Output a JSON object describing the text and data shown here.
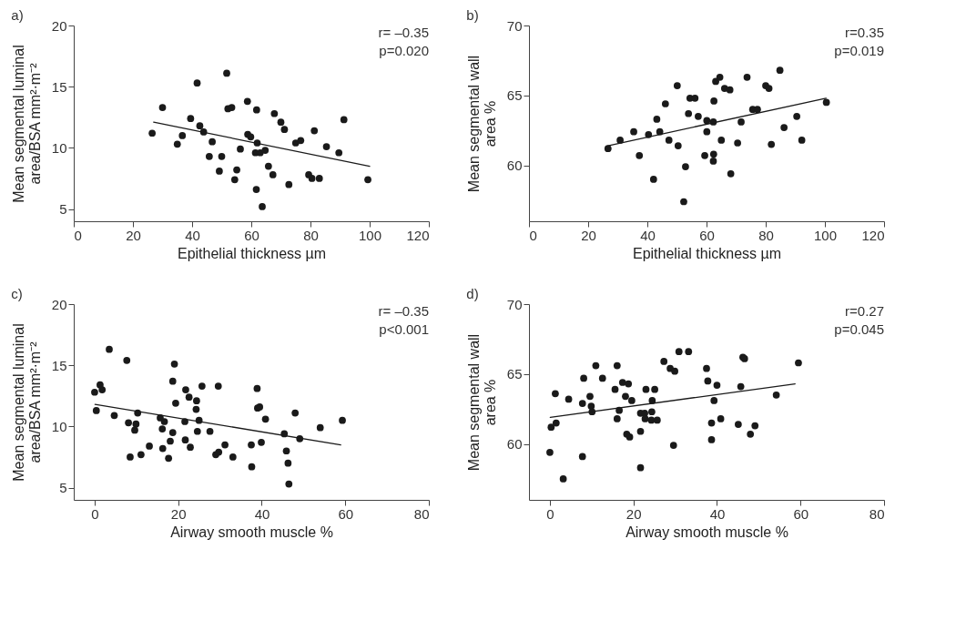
{
  "chart_data": [
    {
      "type": "scatter",
      "title": "a)",
      "xlabel": "Epithelial thickness µm",
      "ylabel": "Mean segmental luminal\narea/BSA mm²·m⁻²",
      "xlim": [
        0,
        120
      ],
      "xticks": [
        0,
        20,
        40,
        60,
        80,
        100,
        120
      ],
      "ylim": [
        4,
        20
      ],
      "yticks": [
        5,
        10,
        15,
        20
      ],
      "grid": false,
      "annotations": [
        "r= –0.35",
        "p=0.020"
      ],
      "series": [
        {
          "marker": "circle",
          "color": "#1a1a1a",
          "x": [
            26.5,
            30.0,
            35.0,
            36.7,
            39.5,
            41.7,
            42.6,
            43.9,
            46.8,
            45.8,
            50.0,
            49.2,
            51.7,
            52.1,
            53.4,
            55.1,
            54.4,
            56.3,
            58.7,
            58.8,
            59.8,
            61.8,
            62.0,
            61.4,
            63.0,
            64.7,
            61.7,
            63.7,
            65.8,
            67.3,
            67.8,
            70.0,
            71.2,
            72.7,
            75.0,
            76.7,
            79.4,
            80.5,
            81.3,
            83.0,
            85.4,
            89.6,
            91.3,
            99.4
          ],
          "values": [
            11.2,
            13.3,
            10.3,
            11.0,
            12.4,
            15.3,
            11.8,
            11.3,
            10.5,
            9.3,
            9.3,
            8.1,
            16.1,
            13.2,
            13.3,
            8.2,
            7.4,
            9.9,
            13.8,
            11.1,
            10.9,
            13.1,
            10.4,
            9.6,
            9.6,
            9.8,
            6.6,
            5.2,
            8.5,
            7.8,
            12.8,
            12.1,
            11.5,
            7.0,
            10.4,
            10.6,
            7.8,
            7.5,
            11.4,
            7.5,
            10.1,
            9.6,
            12.3,
            7.4
          ]
        },
        {
          "type": "line",
          "color": "#1a1a1a",
          "line_style": "solid",
          "x": [
            27,
            100
          ],
          "values": [
            12.1,
            8.5
          ]
        }
      ]
    },
    {
      "type": "scatter",
      "title": "b)",
      "xlabel": "Epithelial thickness µm",
      "ylabel": "Mean segmental wall\narea %",
      "xlim": [
        0,
        120
      ],
      "xticks": [
        0,
        20,
        40,
        60,
        80,
        100,
        120
      ],
      "ylim": [
        56,
        70
      ],
      "yticks": [
        60,
        65,
        70
      ],
      "grid": false,
      "annotations": [
        "r=0.35",
        "p=0.019"
      ],
      "series": [
        {
          "marker": "circle",
          "color": "#1a1a1a",
          "x": [
            26.7,
            30.8,
            35.4,
            37.3,
            40.4,
            42.1,
            43.2,
            44.2,
            46.1,
            47.3,
            50.1,
            50.4,
            52.3,
            52.9,
            53.9,
            54.4,
            56.1,
            57.2,
            60.1,
            60.1,
            59.4,
            62.3,
            62.4,
            62.3,
            62.5,
            63.1,
            64.5,
            65.0,
            66.1,
            67.9,
            68.2,
            70.5,
            71.7,
            73.7,
            75.6,
            77.2,
            80.0,
            81.1,
            81.9,
            84.8,
            86.2,
            90.5,
            92.2,
            100.5
          ],
          "values": [
            61.2,
            61.8,
            62.4,
            60.7,
            62.2,
            59.0,
            63.3,
            62.4,
            64.4,
            61.8,
            65.7,
            61.4,
            57.4,
            59.9,
            63.7,
            64.8,
            64.8,
            63.5,
            63.2,
            62.4,
            60.7,
            63.1,
            60.8,
            60.3,
            64.6,
            66.0,
            66.3,
            61.8,
            65.5,
            65.4,
            59.4,
            61.6,
            63.1,
            66.3,
            64.0,
            64.0,
            65.7,
            65.5,
            61.5,
            66.8,
            62.7,
            63.5,
            61.8,
            64.5
          ]
        },
        {
          "type": "line",
          "color": "#1a1a1a",
          "line_style": "solid",
          "x": [
            26.7,
            100.4
          ],
          "values": [
            61.4,
            64.8
          ]
        }
      ]
    },
    {
      "type": "scatter",
      "title": "c)",
      "xlabel": "Airway smooth muscle %",
      "ylabel": "Mean segmental luminal\narea/BSA mm²·m⁻²",
      "xlim": [
        -5,
        80
      ],
      "xticks": [
        0,
        20,
        40,
        60,
        80
      ],
      "ylim": [
        4,
        20
      ],
      "yticks": [
        5,
        10,
        15,
        20
      ],
      "grid": false,
      "annotations": [
        "r= –0.35",
        "p<0.001"
      ],
      "series": [
        {
          "marker": "circle",
          "color": "#1a1a1a",
          "x": [
            0.0,
            0.4,
            1.3,
            1.8,
            3.5,
            4.7,
            7.7,
            8.1,
            8.5,
            9.9,
            9.6,
            10.3,
            11.1,
            13.1,
            15.7,
            16.7,
            16.2,
            16.3,
            17.7,
            18.1,
            18.7,
            18.7,
            19.1,
            19.4,
            21.6,
            21.7,
            21.8,
            22.6,
            22.9,
            24.4,
            24.3,
            25.0,
            24.6,
            25.7,
            27.6,
            29.0,
            29.7,
            29.6,
            31.2,
            33.1,
            37.5,
            37.6,
            38.9,
            39.0,
            39.5,
            39.9,
            40.9,
            45.4,
            45.9,
            46.3,
            46.5,
            48.0,
            49.1,
            54.0,
            59.3
          ],
          "values": [
            12.8,
            11.3,
            13.4,
            13.0,
            16.3,
            10.9,
            15.4,
            10.3,
            7.5,
            10.2,
            9.7,
            11.1,
            7.7,
            8.4,
            10.7,
            10.4,
            9.8,
            8.2,
            7.4,
            8.8,
            9.5,
            13.7,
            15.1,
            11.9,
            10.4,
            8.9,
            13.0,
            12.4,
            8.3,
            12.1,
            11.4,
            10.5,
            9.6,
            13.3,
            9.6,
            7.7,
            7.9,
            13.3,
            8.5,
            7.5,
            8.5,
            6.7,
            13.1,
            11.5,
            11.6,
            8.7,
            10.6,
            9.4,
            8.0,
            7.0,
            5.3,
            11.1,
            9.0,
            9.9,
            10.5
          ]
        },
        {
          "type": "line",
          "color": "#1a1a1a",
          "line_style": "solid",
          "x": [
            0.1,
            58.9
          ],
          "values": [
            11.8,
            8.5
          ]
        }
      ]
    },
    {
      "type": "scatter",
      "title": "d)",
      "xlabel": "Airway smooth muscle %",
      "ylabel": "Mean segmental wall\narea %",
      "xlim": [
        -5,
        80
      ],
      "xticks": [
        0,
        20,
        40,
        60,
        80
      ],
      "ylim": [
        56,
        70
      ],
      "yticks": [
        60,
        65,
        70
      ],
      "grid": false,
      "annotations": [
        "r=0.27",
        "p=0.045"
      ],
      "series": [
        {
          "marker": "circle",
          "color": "#1a1a1a",
          "x": [
            0.0,
            0.3,
            1.5,
            1.3,
            3.2,
            4.5,
            7.8,
            7.8,
            8.1,
            9.6,
            9.9,
            10.1,
            11.0,
            12.6,
            15.6,
            16.1,
            16.1,
            16.6,
            17.4,
            18.1,
            18.8,
            18.4,
            19.1,
            19.6,
            21.7,
            21.7,
            21.7,
            22.7,
            22.8,
            23.0,
            24.3,
            24.4,
            24.5,
            25.1,
            25.7,
            27.3,
            28.8,
            29.9,
            29.6,
            30.9,
            33.2,
            37.5,
            37.8,
            38.7,
            38.7,
            39.3,
            40.0,
            40.9,
            45.1,
            45.7,
            46.2,
            46.6,
            48.0,
            49.1,
            54.2,
            59.5
          ],
          "values": [
            59.4,
            61.2,
            61.5,
            63.6,
            57.5,
            63.2,
            62.9,
            59.1,
            64.7,
            63.4,
            62.7,
            62.3,
            65.6,
            64.7,
            63.9,
            65.6,
            61.8,
            62.4,
            64.4,
            63.4,
            64.3,
            60.7,
            60.5,
            63.1,
            60.9,
            58.3,
            62.2,
            62.2,
            61.8,
            63.9,
            61.7,
            62.3,
            63.1,
            63.9,
            61.7,
            65.9,
            65.4,
            65.2,
            59.9,
            66.6,
            66.6,
            65.4,
            64.5,
            61.5,
            60.3,
            63.1,
            64.2,
            61.8,
            61.4,
            64.1,
            66.2,
            66.1,
            60.7,
            61.3,
            63.5,
            65.8
          ]
        },
        {
          "type": "line",
          "color": "#1a1a1a",
          "line_style": "solid",
          "x": [
            0.1,
            58.7
          ],
          "values": [
            61.9,
            64.3
          ]
        }
      ]
    }
  ]
}
